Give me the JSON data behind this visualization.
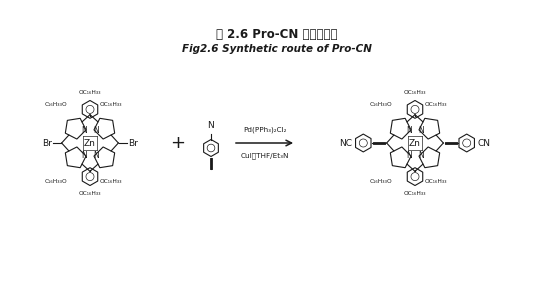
{
  "title_cn": "图 2.6 Pro-CN 的合成路线",
  "title_en": "Fig2.6 Synthetic route of Pro-CN",
  "bg_color": "#ffffff",
  "text_color": "#1a1a1a",
  "reagents_line1": "Pd(PPh₃)₂Cl₂",
  "reagents_line2": "CuI，THF/Et₃N",
  "fig_width": 5.54,
  "fig_height": 2.81,
  "dpi": 100,
  "top_label_oc": "OC₁₆H₃₃",
  "top_label_left": "C₁₆H₃₃O",
  "top_label_right": "OC₁₆H₃₃",
  "bot_label_oc": "OC₁₆H₃₃",
  "bot_label_left": "C₁₆H₃₃O",
  "bot_label_right": "OC₁₆H₃₃"
}
